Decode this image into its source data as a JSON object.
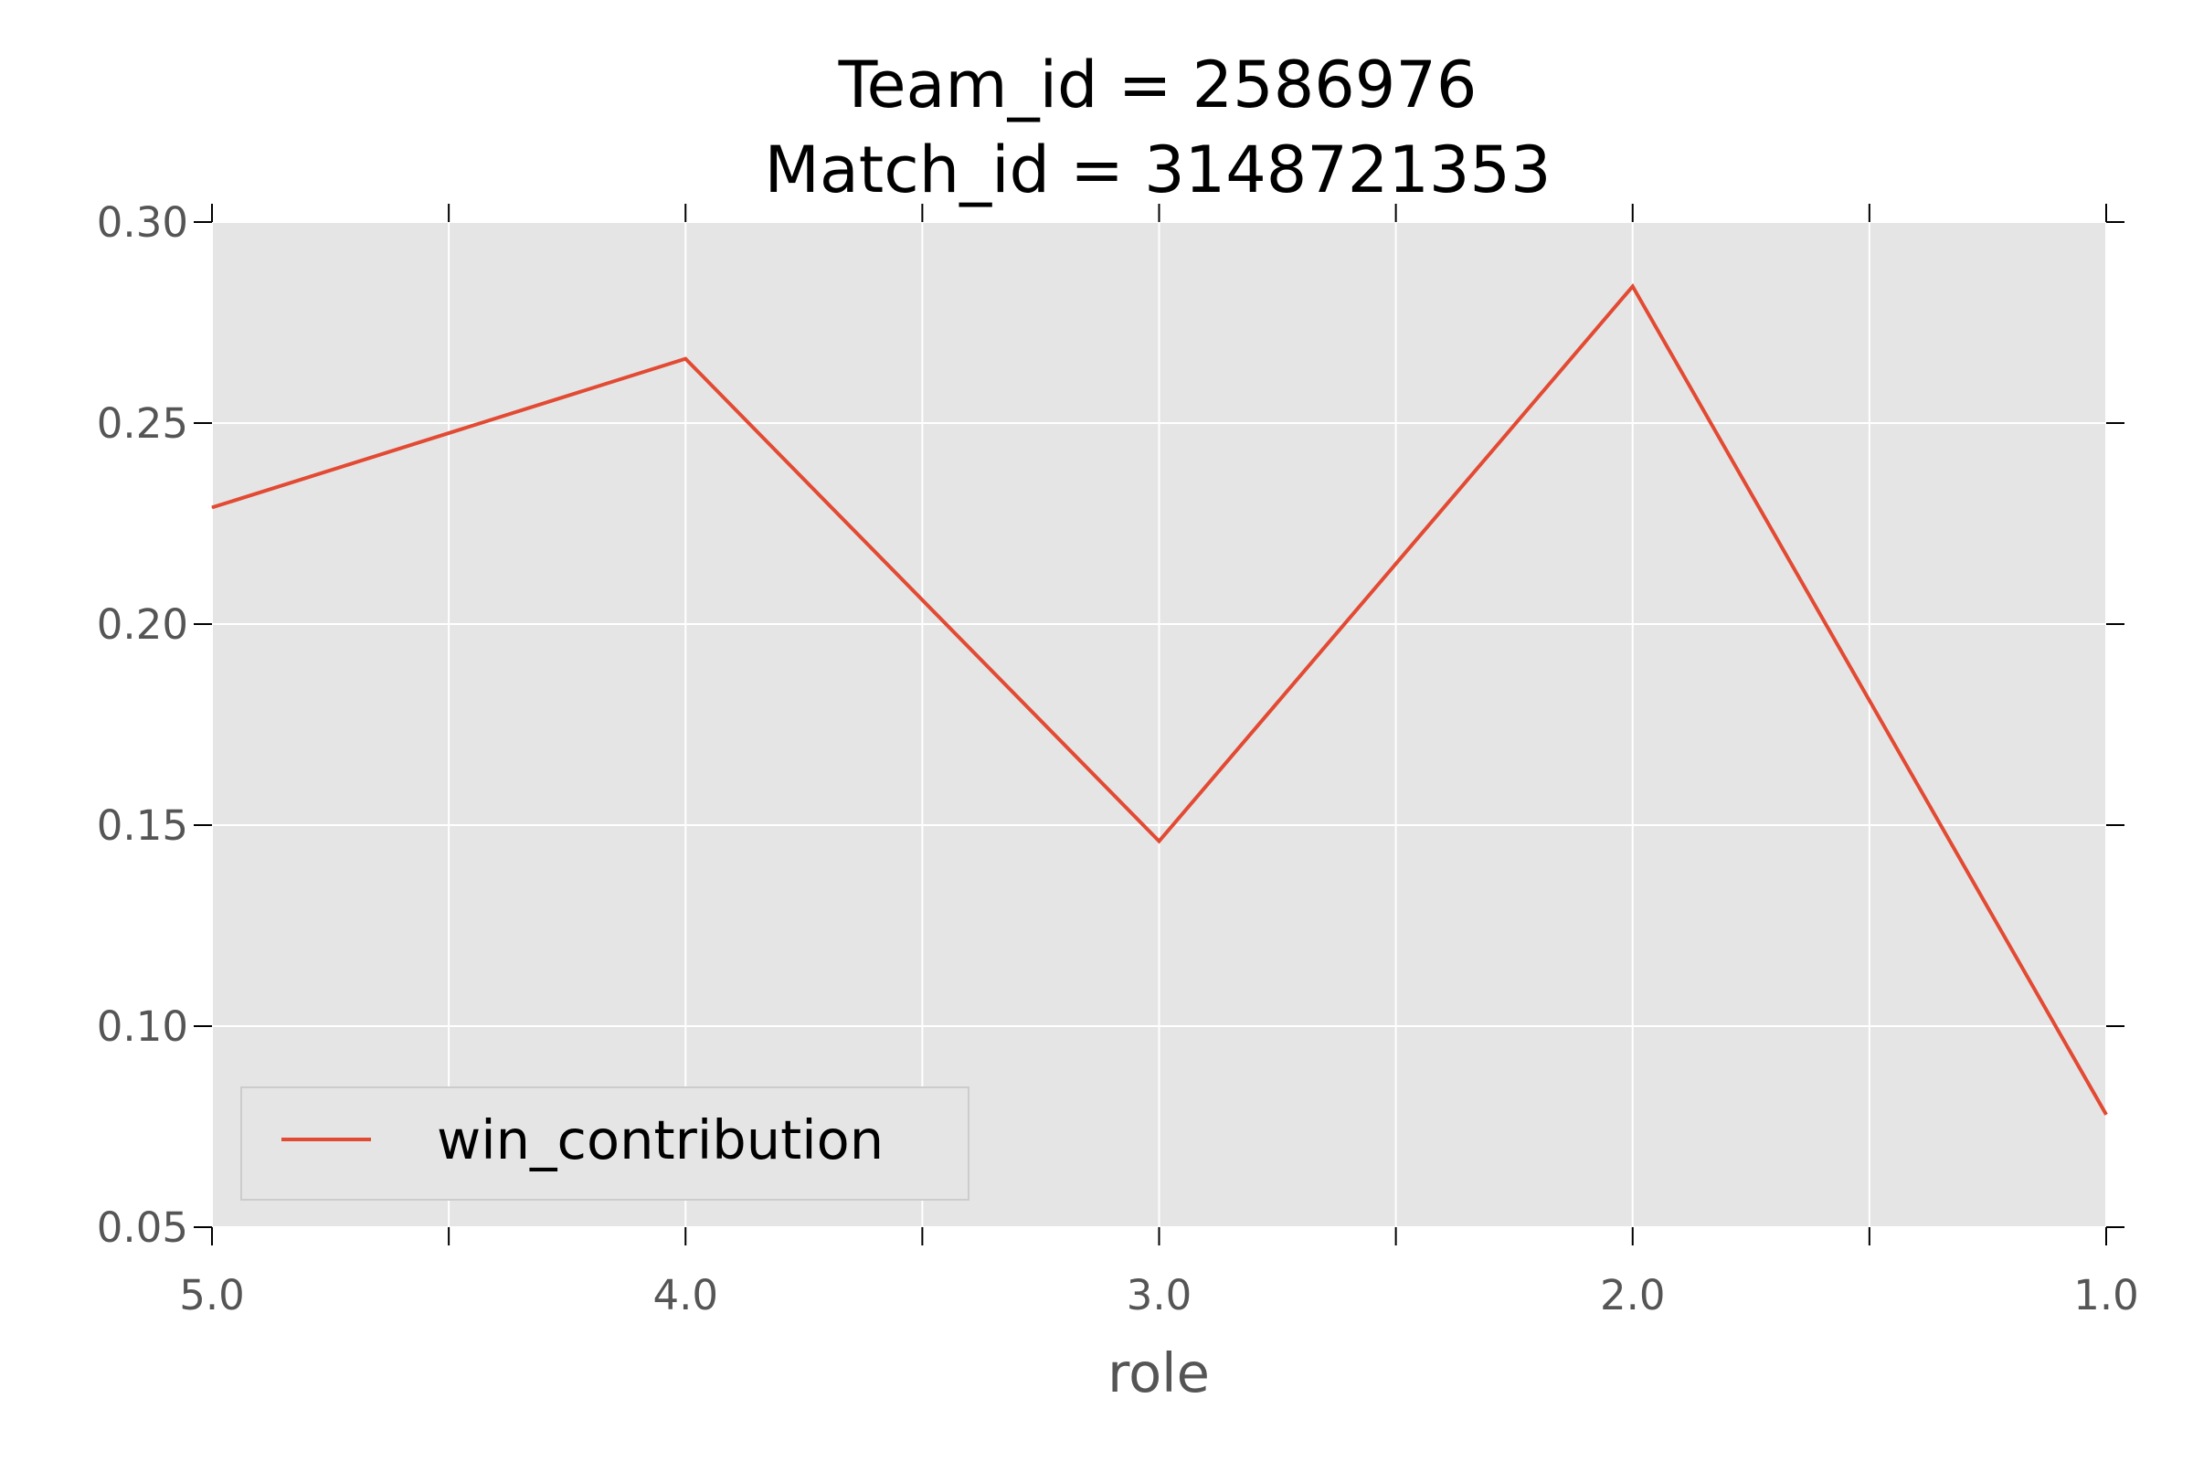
{
  "chart_data": {
    "type": "line",
    "title_lines": [
      "Team_id = 2586976",
      "Match_id = 3148721353"
    ],
    "xlabel": "role",
    "ylabel": "",
    "x": [
      5.0,
      4.0,
      3.0,
      2.0,
      1.0
    ],
    "x_reversed": true,
    "xlim": [
      5.0,
      1.0
    ],
    "ylim": [
      0.05,
      0.3
    ],
    "x_ticks": [
      5.0,
      4.5,
      4.0,
      3.5,
      3.0,
      2.5,
      2.0,
      1.5,
      1.0
    ],
    "x_tick_labels": [
      "5.0",
      "",
      "4.0",
      "",
      "3.0",
      "",
      "2.0",
      "",
      "1.0"
    ],
    "y_ticks": [
      0.05,
      0.1,
      0.15,
      0.2,
      0.25,
      0.3
    ],
    "y_tick_labels": [
      "0.05",
      "0.10",
      "0.15",
      "0.20",
      "0.25",
      "0.30"
    ],
    "grid": true,
    "legend_position": "lower-left",
    "series": [
      {
        "name": "win_contribution",
        "color": "#E24A33",
        "values": [
          0.229,
          0.266,
          0.146,
          0.284,
          0.078
        ]
      }
    ],
    "colors": {
      "plot_background": "#E5E5E5",
      "grid": "#FFFFFF",
      "tick_text": "#555555",
      "title_text": "#000000"
    }
  }
}
